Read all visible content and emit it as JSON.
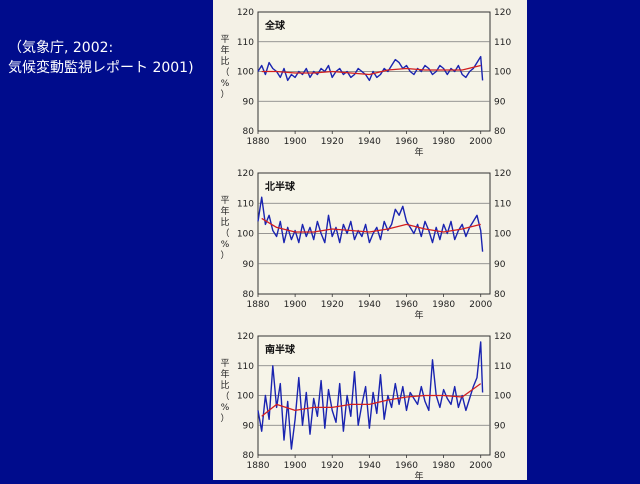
{
  "caption": {
    "line1": "（気象庁, 2002:",
    "line2": "気候変動監視レポート 2001)"
  },
  "colors": {
    "background": "#000c8c",
    "page": "#f4f1e6",
    "annual_line": "#1a24b0",
    "smoothed_line": "#d21f1f"
  },
  "chart_data": [
    {
      "type": "line",
      "title": "全球",
      "ylabel": "平年比（%）",
      "xlabel": "年",
      "x_ticks": [
        "1880",
        "1900",
        "1920",
        "1940",
        "1960",
        "1980",
        "2000"
      ],
      "y_ticks_left": [
        "80",
        "90",
        "100",
        "110",
        "120"
      ],
      "y_ticks_right": [
        "120",
        "110",
        "100",
        "90",
        "80"
      ],
      "xlim": [
        1880,
        2005
      ],
      "ylim": [
        80,
        120
      ],
      "grid": true,
      "series": [
        {
          "role": "annual",
          "x": [
            1880,
            1882,
            1884,
            1886,
            1888,
            1890,
            1892,
            1894,
            1896,
            1898,
            1900,
            1902,
            1904,
            1906,
            1908,
            1910,
            1912,
            1914,
            1916,
            1918,
            1920,
            1922,
            1924,
            1926,
            1928,
            1930,
            1932,
            1934,
            1936,
            1938,
            1940,
            1942,
            1944,
            1946,
            1948,
            1950,
            1952,
            1954,
            1956,
            1958,
            1960,
            1962,
            1964,
            1966,
            1968,
            1970,
            1972,
            1974,
            1976,
            1978,
            1980,
            1982,
            1984,
            1986,
            1988,
            1990,
            1992,
            1994,
            1996,
            1998,
            2000,
            2001
          ],
          "y": [
            100,
            102,
            99,
            103,
            101,
            100,
            98,
            101,
            97,
            99,
            98,
            100,
            99,
            101,
            98,
            100,
            99,
            101,
            100,
            102,
            98,
            100,
            101,
            99,
            100,
            98,
            99,
            101,
            100,
            99,
            97,
            100,
            98,
            99,
            101,
            100,
            102,
            104,
            103,
            101,
            102,
            100,
            99,
            101,
            100,
            102,
            101,
            99,
            100,
            102,
            101,
            99,
            101,
            100,
            102,
            99,
            98,
            100,
            101,
            103,
            105,
            97
          ]
        },
        {
          "role": "smoothed",
          "x": [
            1882,
            1890,
            1900,
            1910,
            1920,
            1930,
            1940,
            1950,
            1960,
            1970,
            1980,
            1990,
            2000
          ],
          "y": [
            100,
            100,
            99.5,
            99.5,
            100,
            99.5,
            99,
            100.5,
            101,
            100.5,
            100.5,
            100.5,
            102
          ]
        }
      ]
    },
    {
      "type": "line",
      "title": "北半球",
      "ylabel": "平年比（%）",
      "xlabel": "年",
      "x_ticks": [
        "1880",
        "1900",
        "1920",
        "1940",
        "1960",
        "1980",
        "2000"
      ],
      "y_ticks_left": [
        "80",
        "90",
        "100",
        "110",
        "120"
      ],
      "y_ticks_right": [
        "120",
        "110",
        "100",
        "90",
        "80"
      ],
      "xlim": [
        1880,
        2005
      ],
      "ylim": [
        80,
        120
      ],
      "grid": true,
      "series": [
        {
          "role": "annual",
          "x": [
            1880,
            1882,
            1884,
            1886,
            1888,
            1890,
            1892,
            1894,
            1896,
            1898,
            1900,
            1902,
            1904,
            1906,
            1908,
            1910,
            1912,
            1914,
            1916,
            1918,
            1920,
            1922,
            1924,
            1926,
            1928,
            1930,
            1932,
            1934,
            1936,
            1938,
            1940,
            1942,
            1944,
            1946,
            1948,
            1950,
            1952,
            1954,
            1956,
            1958,
            1960,
            1962,
            1964,
            1966,
            1968,
            1970,
            1972,
            1974,
            1976,
            1978,
            1980,
            1982,
            1984,
            1986,
            1988,
            1990,
            1992,
            1994,
            1996,
            1998,
            2000,
            2001
          ],
          "y": [
            104,
            112,
            103,
            106,
            101,
            99,
            104,
            97,
            102,
            98,
            101,
            97,
            103,
            99,
            102,
            98,
            104,
            100,
            97,
            106,
            99,
            102,
            97,
            103,
            100,
            104,
            98,
            101,
            99,
            103,
            97,
            100,
            102,
            98,
            104,
            101,
            103,
            108,
            106,
            109,
            104,
            102,
            100,
            103,
            99,
            104,
            101,
            97,
            102,
            98,
            103,
            100,
            104,
            98,
            101,
            103,
            99,
            102,
            104,
            106,
            101,
            94
          ]
        },
        {
          "role": "smoothed",
          "x": [
            1882,
            1890,
            1900,
            1910,
            1920,
            1930,
            1940,
            1950,
            1960,
            1970,
            1980,
            1990,
            2000
          ],
          "y": [
            105,
            102,
            100.5,
            100.5,
            101.5,
            101,
            100.5,
            101.5,
            103,
            101.5,
            100.5,
            101.5,
            103
          ]
        }
      ]
    },
    {
      "type": "line",
      "title": "南半球",
      "ylabel": "平年比（%）",
      "xlabel": "年",
      "x_ticks": [
        "1880",
        "1900",
        "1920",
        "1940",
        "1960",
        "1980",
        "2000"
      ],
      "y_ticks_left": [
        "80",
        "90",
        "100",
        "110",
        "120"
      ],
      "y_ticks_right": [
        "120",
        "110",
        "100",
        "90",
        "80"
      ],
      "xlim": [
        1880,
        2005
      ],
      "ylim": [
        80,
        120
      ],
      "grid": true,
      "series": [
        {
          "role": "annual",
          "x": [
            1880,
            1882,
            1884,
            1886,
            1888,
            1890,
            1892,
            1894,
            1896,
            1898,
            1900,
            1902,
            1904,
            1906,
            1908,
            1910,
            1912,
            1914,
            1916,
            1918,
            1920,
            1922,
            1924,
            1926,
            1928,
            1930,
            1932,
            1934,
            1936,
            1938,
            1940,
            1942,
            1944,
            1946,
            1948,
            1950,
            1952,
            1954,
            1956,
            1958,
            1960,
            1962,
            1964,
            1966,
            1968,
            1970,
            1972,
            1974,
            1976,
            1978,
            1980,
            1982,
            1984,
            1986,
            1988,
            1990,
            1992,
            1994,
            1996,
            1998,
            2000,
            2001
          ],
          "y": [
            95,
            88,
            100,
            92,
            110,
            96,
            104,
            85,
            98,
            82,
            92,
            106,
            90,
            101,
            87,
            99,
            93,
            105,
            89,
            102,
            95,
            91,
            104,
            88,
            100,
            93,
            108,
            90,
            97,
            103,
            89,
            101,
            94,
            107,
            92,
            100,
            96,
            104,
            97,
            103,
            95,
            101,
            99,
            97,
            103,
            98,
            95,
            112,
            100,
            96,
            102,
            99,
            97,
            103,
            96,
            100,
            95,
            99,
            103,
            106,
            118,
            101
          ]
        },
        {
          "role": "smoothed",
          "x": [
            1882,
            1890,
            1900,
            1910,
            1920,
            1930,
            1940,
            1950,
            1960,
            1970,
            1980,
            1990,
            2000
          ],
          "y": [
            93,
            97,
            95,
            96,
            96,
            97,
            97,
            98.5,
            99.5,
            100,
            100,
            99.5,
            104
          ]
        }
      ]
    }
  ]
}
